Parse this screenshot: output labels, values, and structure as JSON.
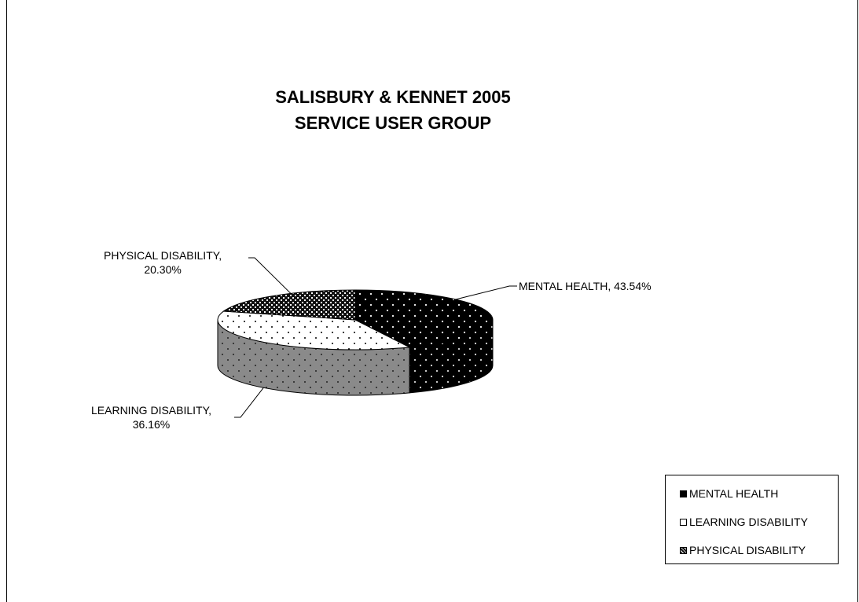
{
  "chart_data": {
    "type": "pie",
    "title": "SALISBURY & KENNET 2005",
    "subtitle": "SERVICE USER GROUP",
    "categories": [
      "MENTAL HEALTH",
      "LEARNING DISABILITY",
      "PHYSICAL DISABILITY"
    ],
    "values": [
      43.54,
      36.16,
      20.3
    ],
    "data_labels": [
      "MENTAL HEALTH, 43.54%",
      "LEARNING DISABILITY, 36.16%",
      "PHYSICAL DISABILITY, 20.30%"
    ],
    "legend": {
      "position": "bottom-right",
      "entries": [
        "MENTAL HEALTH",
        "LEARNING DISABILITY",
        "PHYSICAL DISABILITY"
      ]
    },
    "style": "3d-pie",
    "colors": {
      "MENTAL HEALTH": "#000000",
      "LEARNING DISABILITY": "#ffffff",
      "PHYSICAL DISABILITY": "#555555"
    }
  },
  "labels": {
    "mental_health": "MENTAL HEALTH, 43.54%",
    "learning_line1": "LEARNING DISABILITY,",
    "learning_line2": "36.16%",
    "physical_line1": "PHYSICAL DISABILITY,",
    "physical_line2": "20.30%"
  },
  "legend_labels": {
    "mental_health": "MENTAL HEALTH",
    "learning_disability": "LEARNING DISABILITY",
    "physical_disability": "PHYSICAL DISABILITY"
  }
}
